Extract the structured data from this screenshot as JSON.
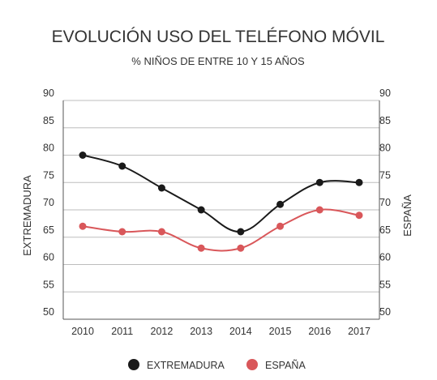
{
  "chart_data": {
    "type": "line",
    "title": "EVOLUCIÓN USO DEL TELÉFONO MÓVIL",
    "subtitle": "% NIÑOS DE ENTRE 10 Y 15 AÑOS",
    "ylabel_left": "EXTREMADURA",
    "ylabel_right": "ESPAÑA",
    "x": [
      "2010",
      "2011",
      "2012",
      "2013",
      "2014",
      "2015",
      "2016",
      "2017"
    ],
    "ylim": [
      50,
      90
    ],
    "yticks": [
      "50",
      "55",
      "60",
      "65",
      "70",
      "75",
      "80",
      "85",
      "90"
    ],
    "grid": true,
    "legend_position": "bottom",
    "series": [
      {
        "name": "EXTREMADURA",
        "color": "#1a1a1a",
        "values": [
          80,
          78,
          74,
          70,
          66,
          71,
          75,
          75
        ]
      },
      {
        "name": "ESPAÑA",
        "color": "#d9575a",
        "values": [
          67,
          66,
          66,
          63,
          63,
          67,
          70,
          69
        ]
      }
    ]
  }
}
